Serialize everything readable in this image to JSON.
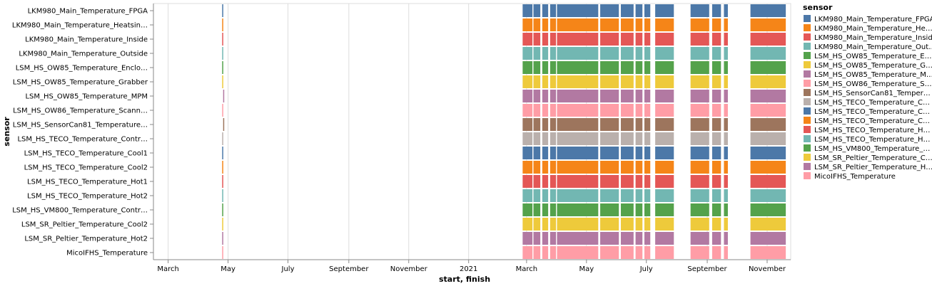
{
  "chart_data": {
    "type": "gantt",
    "title": "",
    "xlabel": "start, finish",
    "ylabel": "sensor",
    "x_type": "time",
    "xlim": [
      "2020-02-15",
      "2021-11-25"
    ],
    "x_ticks": [
      {
        "date": "2020-03-01",
        "label": "March"
      },
      {
        "date": "2020-05-01",
        "label": "May"
      },
      {
        "date": "2020-07-01",
        "label": "July"
      },
      {
        "date": "2020-09-01",
        "label": "September"
      },
      {
        "date": "2020-11-01",
        "label": "November"
      },
      {
        "date": "2021-01-01",
        "label": "2021"
      },
      {
        "date": "2021-03-01",
        "label": "March"
      },
      {
        "date": "2021-05-01",
        "label": "May"
      },
      {
        "date": "2021-07-01",
        "label": "July"
      },
      {
        "date": "2021-09-01",
        "label": "September"
      },
      {
        "date": "2021-11-01",
        "label": "November"
      }
    ],
    "grid": true,
    "legend": {
      "title": "sensor",
      "placement": "right"
    },
    "categories": [
      "LKM980_Main_Temperature_FPGA",
      "LKM980_Main_Temperature_Heatsin…",
      "LKM980_Main_Temperature_Inside",
      "LKM980_Main_Temperature_Outside",
      "LSM_HS_OW85_Temperature_Enclo…",
      "LSM_HS_OW85_Temperature_Grabber",
      "LSM_HS_OW85_Temperature_MPM",
      "LSM_HS_OW86_Temperature_Scann…",
      "LSM_HS_SensorCan81_Temperature…",
      "LSM_HS_TECO_Temperature_Contr…",
      "LSM_HS_TECO_Temperature_Cool1",
      "LSM_HS_TECO_Temperature_Cool2",
      "LSM_HS_TECO_Temperature_Hot1",
      "LSM_HS_TECO_Temperature_Hot2",
      "LSM_HS_VM800_Temperature_Contr…",
      "LSM_SR_Peltier_Temperature_Cool2",
      "LSM_SR_Peltier_Temperature_Hot2",
      "MicoIFHS_Temperature"
    ],
    "legend_labels": [
      "LKM980_Main_Temperature_FPGA",
      "LKM980_Main_Temperature_He…",
      "LKM980_Main_Temperature_Inside",
      "LKM980_Main_Temperature_Out…",
      "LSM_HS_OW85_Temperature_E…",
      "LSM_HS_OW85_Temperature_G…",
      "LSM_HS_OW85_Temperature_M…",
      "LSM_HS_OW86_Temperature_S…",
      "LSM_HS_SensorCan81_Temper…",
      "LSM_HS_TECO_Temperature_C…",
      "LSM_HS_TECO_Temperature_C…",
      "LSM_HS_TECO_Temperature_C…",
      "LSM_HS_TECO_Temperature_H…",
      "LSM_HS_TECO_Temperature_H…",
      "LSM_HS_VM800_Temperature_…",
      "LSM_SR_Peltier_Temperature_C…",
      "LSM_SR_Peltier_Temperature_H…",
      "MicoIFHS_Temperature"
    ],
    "colors": [
      "#4c78a8",
      "#f58518",
      "#e45756",
      "#72b7b2",
      "#54a24b",
      "#eeca3b",
      "#b279a2",
      "#ff9da6",
      "#9d755d",
      "#bab0ac",
      "#4c78a8",
      "#f58518",
      "#e45756",
      "#72b7b2",
      "#54a24b",
      "#eeca3b",
      "#b279a2",
      "#ff9da6"
    ],
    "intervals": [
      [
        "2020-04-25",
        "2020-04-26"
      ],
      [
        "2021-02-25",
        "2021-03-07"
      ],
      [
        "2021-03-08",
        "2021-03-15"
      ],
      [
        "2021-03-17",
        "2021-03-23"
      ],
      [
        "2021-03-25",
        "2021-03-31"
      ],
      [
        "2021-04-01",
        "2021-05-13"
      ],
      [
        "2021-05-15",
        "2021-06-03"
      ],
      [
        "2021-06-05",
        "2021-06-18"
      ],
      [
        "2021-06-20",
        "2021-06-27"
      ],
      [
        "2021-06-29",
        "2021-07-05"
      ],
      [
        "2021-07-10",
        "2021-07-29"
      ],
      [
        "2021-08-15",
        "2021-09-03"
      ],
      [
        "2021-09-06",
        "2021-09-15"
      ],
      [
        "2021-09-18",
        "2021-09-22"
      ],
      [
        "2021-10-15",
        "2021-11-20"
      ]
    ],
    "interval_exceptions": {
      "6": [
        [
          "2020-04-26",
          "2020-04-27"
        ]
      ],
      "8": [
        [
          "2020-04-26",
          "2020-04-27"
        ]
      ]
    }
  }
}
